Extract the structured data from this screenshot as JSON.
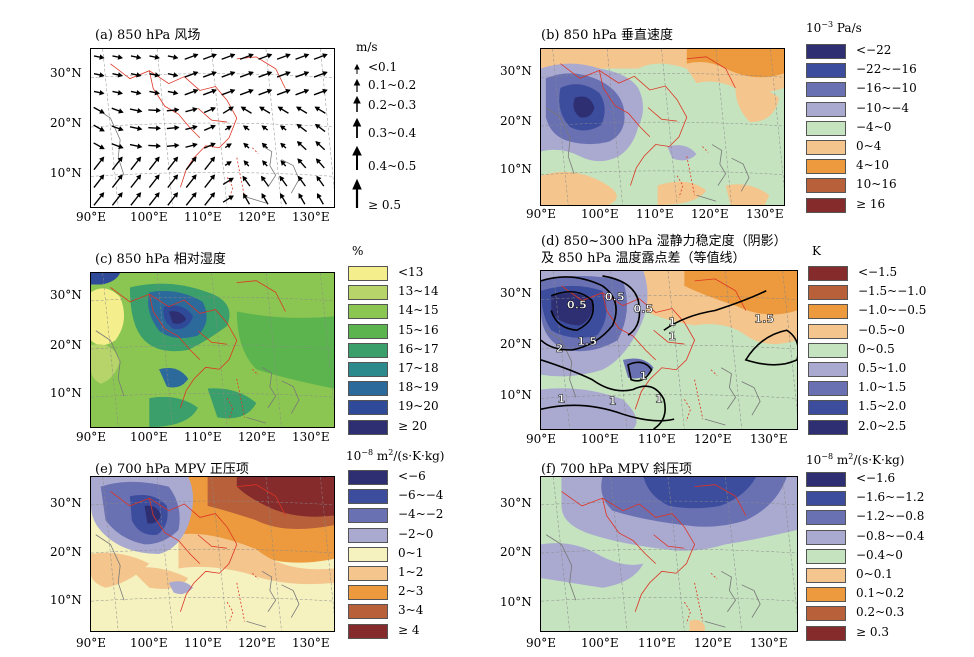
{
  "panels": {
    "a": {
      "title": "(a) 850 hPa 风场"
    },
    "b": {
      "title": "(b) 850 hPa 垂直速度"
    },
    "c": {
      "title": "(c) 850 hPa 相对湿度"
    },
    "d": {
      "title": "(d) 850~300 hPa 湿静力稳定度（阴影）",
      "title2": "及 850 hPa 温度露点差（等值线）"
    },
    "e": {
      "title": "(e) 700 hPa MPV 正压项"
    },
    "f": {
      "title": "(f) 700 hPa MPV 斜压项"
    }
  },
  "axes": {
    "x_ticks": [
      "90°E",
      "100°E",
      "110°E",
      "120°E",
      "130°E"
    ],
    "y_ticks": [
      "30°N",
      "20°N",
      "10°N"
    ]
  },
  "legends": {
    "wind": {
      "unit": "m/s",
      "labels": [
        "<0.1",
        "0.1~0.2",
        "0.2~0.3",
        "0.3~0.4",
        "0.4~0.5",
        "≥ 0.5"
      ]
    },
    "omega": {
      "unit_base": "10",
      "unit_exp": "−3",
      "unit_rest": " Pa/s",
      "labels": [
        "<−22",
        "−22~−16",
        "−16~−10",
        "−10~−4",
        "−4~0",
        "0~4",
        "4~10",
        "10~16",
        "≥ 16"
      ],
      "colors": [
        "#2e2f72",
        "#3d4d9e",
        "#6a71b3",
        "#aaaad0",
        "#c5e3bf",
        "#f4c58d",
        "#ec9a3d",
        "#b8603a",
        "#862b2c"
      ]
    },
    "rh": {
      "unit": "%",
      "labels": [
        "<13",
        "13~14",
        "14~15",
        "15~16",
        "16~17",
        "17~18",
        "18~19",
        "19~20",
        "≥ 20"
      ],
      "colors": [
        "#f4ee8c",
        "#b6d46a",
        "#8cc652",
        "#5cb44e",
        "#3a9f6a",
        "#2c8a8c",
        "#2d6a9c",
        "#2e4a98",
        "#2e2f72"
      ]
    },
    "stab": {
      "unit": "K",
      "labels": [
        "<−1.5",
        "−1.5~−1.0",
        "−1.0~−0.5",
        "−0.5~0",
        "0~0.5",
        "0.5~1.0",
        "1.0~1.5",
        "1.5~2.0",
        "2.0~2.5"
      ],
      "colors": [
        "#862b2c",
        "#b8603a",
        "#ec9a3d",
        "#f4c58d",
        "#c5e3bf",
        "#aaaad0",
        "#6a71b3",
        "#3d4d9e",
        "#2e2f72"
      ]
    },
    "mpv_e": {
      "unit_base": "10",
      "unit_exp": "−8",
      "unit_rest": " m",
      "unit_exp2": "2",
      "unit_tail": "/(s·K·kg)",
      "labels": [
        "<−6",
        "−6~−4",
        "−4~−2",
        "−2~0",
        "0~1",
        "1~2",
        "2~3",
        "3~4",
        "≥ 4"
      ],
      "colors": [
        "#2e2f72",
        "#3d4d9e",
        "#6a71b3",
        "#aaaad0",
        "#f5f2c0",
        "#f4c58d",
        "#ec9a3d",
        "#b8603a",
        "#862b2c"
      ]
    },
    "mpv_f": {
      "unit_base": "10",
      "unit_exp": "−8",
      "unit_rest": " m",
      "unit_exp2": "2",
      "unit_tail": "/(s·K·kg)",
      "labels": [
        "<−1.6",
        "−1.6~−1.2",
        "−1.2~−0.8",
        "−0.8~−0.4",
        "−0.4~0",
        "0~0.1",
        "0.1~0.2",
        "0.2~0.3",
        "≥ 0.3"
      ],
      "colors": [
        "#2e2f72",
        "#3d4d9e",
        "#6a71b3",
        "#aaaad0",
        "#c5e3bf",
        "#f4c58d",
        "#ec9a3d",
        "#b8603a",
        "#862b2c"
      ]
    }
  },
  "contour_labels": [
    "0.5",
    "0.5",
    "0.5",
    "1.5",
    "2",
    "1",
    "1",
    "1",
    "1",
    "1",
    "1.5",
    "1"
  ],
  "chart_data": [
    {
      "panel": "a",
      "type": "vector-field",
      "title": "(a) 850 hPa 风场",
      "legend_unit": "m/s",
      "lon_range": [
        90,
        135
      ],
      "lat_range": [
        3,
        37
      ]
    },
    {
      "panel": "b",
      "type": "heatmap",
      "title": "(b) 850 hPa 垂直速度",
      "unit": "10^-3 Pa/s",
      "lon_range": [
        90,
        135
      ],
      "lat_range": [
        3,
        37
      ]
    },
    {
      "panel": "c",
      "type": "heatmap",
      "title": "(c) 850 hPa 相对湿度",
      "unit": "%",
      "lon_range": [
        90,
        135
      ],
      "lat_range": [
        3,
        37
      ]
    },
    {
      "panel": "d",
      "type": "heatmap",
      "title": "(d) 850~300 hPa 湿静力稳定度（阴影）及 850 hPa 温度露点差（等值线）",
      "unit": "K",
      "lon_range": [
        90,
        135
      ],
      "lat_range": [
        3,
        37
      ]
    },
    {
      "panel": "e",
      "type": "heatmap",
      "title": "(e) 700 hPa MPV 正压项",
      "unit": "10^-8 m^2/(s·K·kg)",
      "lon_range": [
        90,
        135
      ],
      "lat_range": [
        3,
        37
      ]
    },
    {
      "panel": "f",
      "type": "heatmap",
      "title": "(f) 700 hPa MPV 斜压项",
      "unit": "10^-8 m^2/(s·K·kg)",
      "lon_range": [
        90,
        135
      ],
      "lat_range": [
        3,
        37
      ]
    }
  ]
}
